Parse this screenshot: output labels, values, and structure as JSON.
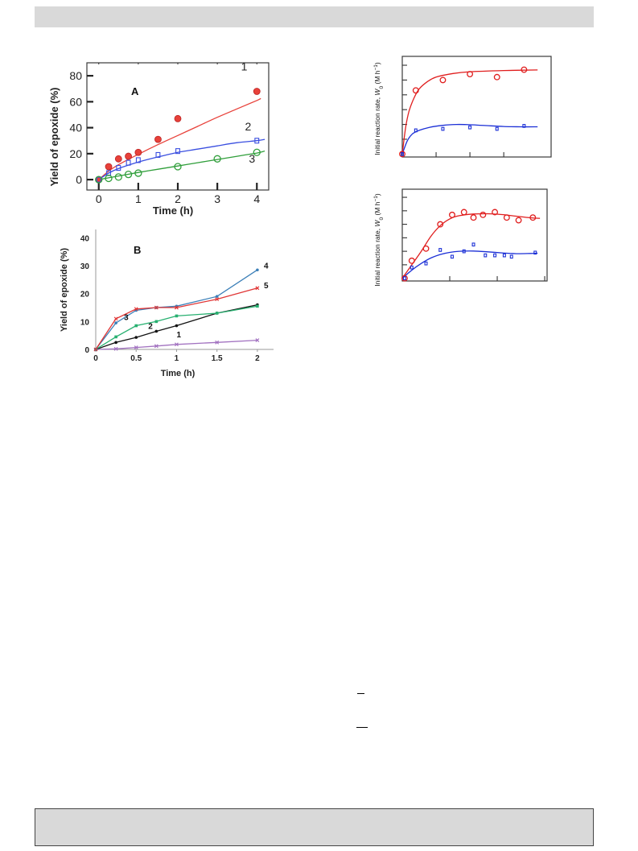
{
  "chart_data": [
    {
      "id": "A",
      "type": "scatter",
      "panel_label": "A",
      "xlabel": "Time (h)",
      "ylabel": "Yield of epoxide (%)",
      "xlim": [
        -0.3,
        4.3
      ],
      "ylim": [
        -8,
        90
      ],
      "x_ticks": [
        0,
        1,
        2,
        3,
        4
      ],
      "y_ticks": [
        0,
        20,
        40,
        60,
        80
      ],
      "series": [
        {
          "name": "1",
          "color": "#e8413a",
          "marker": "circle-filled",
          "x": [
            0,
            0.25,
            0.5,
            0.75,
            1.0,
            1.5,
            2.0,
            4.0
          ],
          "y": [
            0,
            10,
            16,
            18,
            21,
            31,
            47,
            68
          ],
          "fit": [
            [
              0,
              0
            ],
            [
              0.25,
              6.5
            ],
            [
              0.5,
              11.5
            ],
            [
              1.0,
              19.5
            ],
            [
              1.5,
              27
            ],
            [
              2.0,
              34
            ],
            [
              2.5,
              41
            ],
            [
              3.0,
              48
            ],
            [
              3.5,
              54.5
            ],
            [
              4.0,
              61
            ],
            [
              4.1,
              62.5
            ]
          ]
        },
        {
          "name": "2",
          "color": "#3a4fe0",
          "marker": "square-open",
          "x": [
            0,
            0.25,
            0.5,
            0.75,
            1.0,
            1.5,
            2.0,
            4.0
          ],
          "y": [
            0,
            5,
            9,
            13,
            15,
            19,
            22,
            30
          ],
          "fit": [
            [
              0,
              0
            ],
            [
              0.25,
              5
            ],
            [
              0.5,
              8.5
            ],
            [
              1.0,
              13.5
            ],
            [
              1.5,
              17.5
            ],
            [
              2.0,
              21
            ],
            [
              2.5,
              23.5
            ],
            [
              3.0,
              26
            ],
            [
              3.5,
              28.5
            ],
            [
              4.0,
              30
            ],
            [
              4.2,
              31
            ]
          ]
        },
        {
          "name": "3",
          "color": "#2f9e3a",
          "marker": "circle-open",
          "x": [
            0,
            0.25,
            0.5,
            0.75,
            1.0,
            2.0,
            3.0,
            4.0
          ],
          "y": [
            0,
            1,
            2,
            4,
            5,
            10,
            16,
            21
          ],
          "fit": [
            [
              0,
              0
            ],
            [
              0.5,
              2.8
            ],
            [
              1.0,
              5.5
            ],
            [
              1.5,
              8
            ],
            [
              2.0,
              10.5
            ],
            [
              2.5,
              13
            ],
            [
              3.0,
              15.5
            ],
            [
              3.5,
              18
            ],
            [
              4.0,
              20.5
            ],
            [
              4.2,
              22
            ]
          ]
        }
      ]
    },
    {
      "id": "B",
      "type": "line",
      "panel_label": "B",
      "xlabel": "Time (h)",
      "ylabel": "Yield of epoxide (%)",
      "xlim": [
        0,
        2.2
      ],
      "ylim": [
        0,
        43
      ],
      "x_ticks": [
        0,
        0.5,
        1,
        1.5,
        2
      ],
      "x_tick_labels": [
        "0",
        "0.5",
        "1",
        "1.5",
        "2"
      ],
      "y_ticks": [
        0,
        10,
        20,
        30,
        40
      ],
      "series": [
        {
          "name": "1",
          "color": "#a272c0",
          "marker": "x",
          "x": [
            0,
            0.25,
            0.5,
            0.75,
            1.0,
            1.5,
            2.0
          ],
          "y": [
            0,
            0.2,
            0.7,
            1.2,
            1.8,
            2.5,
            3.3
          ]
        },
        {
          "name": "2",
          "color": "#111111",
          "marker": "dot",
          "x": [
            0,
            0.25,
            0.5,
            0.75,
            1.0,
            1.5,
            2.0
          ],
          "y": [
            0,
            2.5,
            4.3,
            6.5,
            8.5,
            13.0,
            16.0
          ]
        },
        {
          "name": "3",
          "color": "#27b070",
          "marker": "square",
          "x": [
            0,
            0.25,
            0.5,
            0.75,
            1.0,
            1.5,
            2.0
          ],
          "y": [
            0,
            4.5,
            8.5,
            10.0,
            12.0,
            13.0,
            15.5
          ]
        },
        {
          "name": "4",
          "color": "#3b7fb8",
          "marker": "dot",
          "x": [
            0,
            0.25,
            0.5,
            0.75,
            1.0,
            1.5,
            2.0
          ],
          "y": [
            0,
            9.5,
            14.0,
            15.0,
            15.5,
            19.0,
            28.5
          ]
        },
        {
          "name": "5",
          "color": "#e03535",
          "marker": "x",
          "x": [
            0,
            0.25,
            0.5,
            0.75,
            1.0,
            1.5,
            2.0
          ],
          "y": [
            0,
            11.0,
            14.5,
            15.0,
            15.0,
            18.0,
            22.0
          ]
        }
      ]
    },
    {
      "id": "C",
      "type": "scatter",
      "ylabel_prefix": "Initial reaction rate, ",
      "ylabel_symbol": "W",
      "ylabel_subscript": "0",
      "ylabel_unit": " (M h",
      "ylabel_sup": "−1",
      "ylabel_close": ")",
      "xlim": [
        0,
        4.4
      ],
      "ylim": [
        -0.1,
        3.3
      ],
      "x_ticks": [
        0,
        1,
        2,
        3
      ],
      "y_ticks": [
        0.5,
        1.0,
        1.5,
        2.0,
        2.5,
        3.0
      ],
      "series": [
        {
          "name": "red",
          "color": "#e01e1e",
          "marker": "circle-open",
          "x": [
            0.0,
            0.4,
            1.2,
            2.0,
            2.8,
            3.6
          ],
          "y": [
            0.0,
            2.15,
            2.5,
            2.7,
            2.6,
            2.85
          ],
          "fit": [
            [
              0,
              0
            ],
            [
              0.1,
              0.9
            ],
            [
              0.2,
              1.45
            ],
            [
              0.35,
              1.9
            ],
            [
              0.5,
              2.2
            ],
            [
              0.75,
              2.45
            ],
            [
              1.0,
              2.6
            ],
            [
              1.5,
              2.72
            ],
            [
              2.0,
              2.78
            ],
            [
              3.0,
              2.82
            ],
            [
              4.0,
              2.84
            ]
          ]
        },
        {
          "name": "blue",
          "color": "#1b2fd6",
          "marker": "square-open",
          "x": [
            0.0,
            0.4,
            1.2,
            2.0,
            2.8,
            3.6
          ],
          "y": [
            0.0,
            0.8,
            0.85,
            0.9,
            0.85,
            0.95
          ],
          "fit": [
            [
              0,
              0
            ],
            [
              0.15,
              0.45
            ],
            [
              0.3,
              0.68
            ],
            [
              0.5,
              0.8
            ],
            [
              0.8,
              0.9
            ],
            [
              1.2,
              0.97
            ],
            [
              1.6,
              1.0
            ],
            [
              2.0,
              0.99
            ],
            [
              2.5,
              0.96
            ],
            [
              3.0,
              0.93
            ],
            [
              3.5,
              0.92
            ],
            [
              4.0,
              0.92
            ]
          ]
        }
      ]
    },
    {
      "id": "D",
      "type": "scatter",
      "ylabel_prefix": "Initial reaction rate, ",
      "ylabel_symbol": "W",
      "ylabel_subscript": "0",
      "ylabel_unit": " (M h",
      "ylabel_sup": "−1",
      "ylabel_close": ")",
      "xlim": [
        0,
        3.05
      ],
      "ylim": [
        -0.1,
        3.3
      ],
      "x_ticks": [
        0,
        1,
        2,
        3
      ],
      "y_ticks": [
        0.5,
        1.0,
        1.5,
        2.0,
        2.5,
        3.0
      ],
      "series": [
        {
          "name": "red",
          "color": "#e01e1e",
          "marker": "circle-open",
          "x": [
            0.05,
            0.2,
            0.5,
            0.8,
            1.05,
            1.3,
            1.5,
            1.7,
            1.95,
            2.2,
            2.45,
            2.75
          ],
          "y": [
            0.0,
            0.65,
            1.1,
            2.0,
            2.35,
            2.45,
            2.25,
            2.35,
            2.45,
            2.25,
            2.15,
            2.25
          ],
          "fit": [
            [
              0,
              0
            ],
            [
              0.2,
              0.5
            ],
            [
              0.4,
              1.0
            ],
            [
              0.6,
              1.55
            ],
            [
              0.8,
              1.95
            ],
            [
              1.0,
              2.2
            ],
            [
              1.2,
              2.32
            ],
            [
              1.5,
              2.38
            ],
            [
              1.8,
              2.39
            ],
            [
              2.1,
              2.36
            ],
            [
              2.4,
              2.3
            ],
            [
              2.7,
              2.24
            ],
            [
              2.9,
              2.22
            ]
          ]
        },
        {
          "name": "blue",
          "color": "#1b2fd6",
          "marker": "square-open",
          "x": [
            0.05,
            0.2,
            0.5,
            0.8,
            1.05,
            1.3,
            1.5,
            1.75,
            1.95,
            2.15,
            2.3,
            2.8
          ],
          "y": [
            0.0,
            0.4,
            0.55,
            1.05,
            0.8,
            1.0,
            1.25,
            0.85,
            0.85,
            0.85,
            0.8,
            0.95
          ],
          "fit": [
            [
              0,
              0
            ],
            [
              0.2,
              0.3
            ],
            [
              0.4,
              0.55
            ],
            [
              0.6,
              0.75
            ],
            [
              0.8,
              0.88
            ],
            [
              1.0,
              0.96
            ],
            [
              1.2,
              1.0
            ],
            [
              1.5,
              1.01
            ],
            [
              1.8,
              0.98
            ],
            [
              2.1,
              0.94
            ],
            [
              2.4,
              0.91
            ],
            [
              2.7,
              0.92
            ],
            [
              2.85,
              0.93
            ]
          ]
        }
      ]
    }
  ]
}
